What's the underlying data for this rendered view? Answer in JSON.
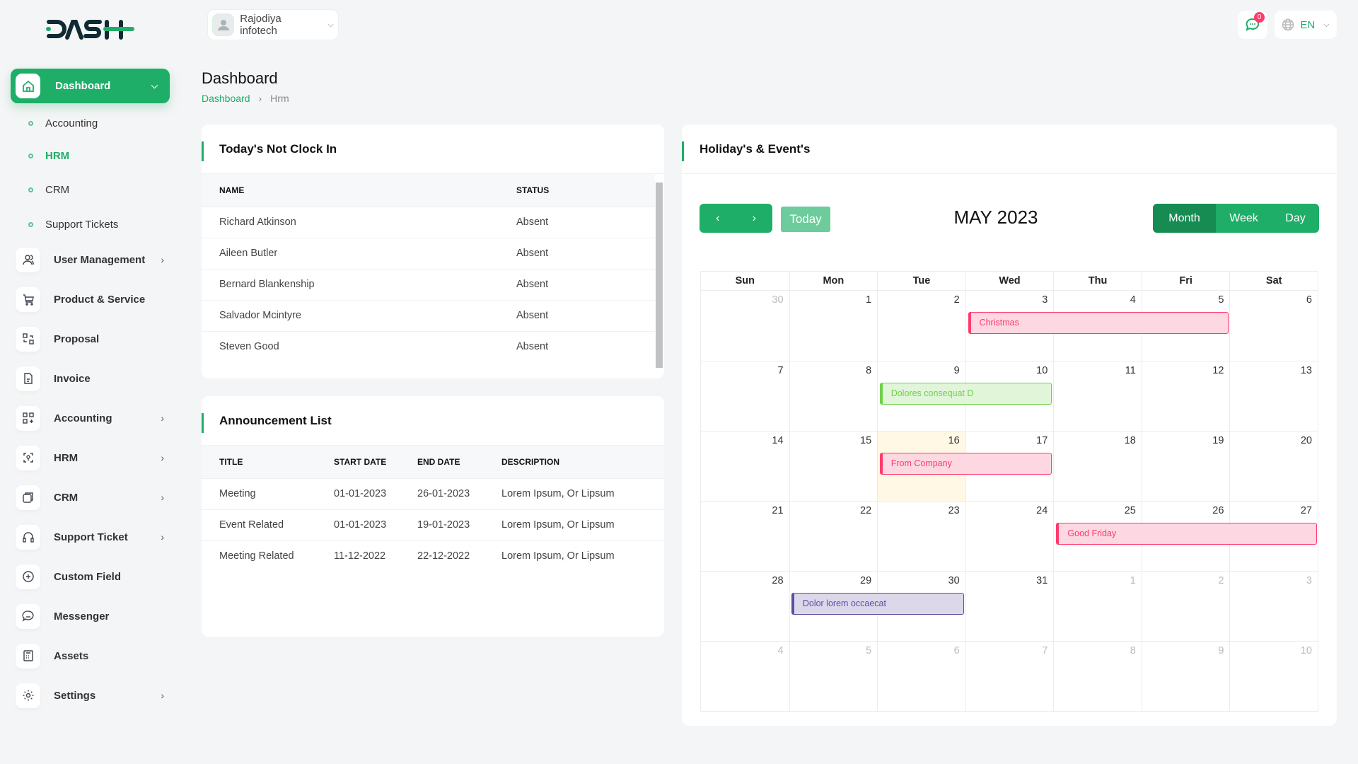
{
  "brand": {
    "logo_text": "DASH"
  },
  "header": {
    "company": "Rajodiya infotech",
    "notifications": "0",
    "language": "EN"
  },
  "sidebar": {
    "active": "Dashboard",
    "submenu": [
      {
        "label": "Accounting"
      },
      {
        "label": "HRM",
        "active": true
      },
      {
        "label": "CRM"
      },
      {
        "label": "Support Tickets"
      }
    ],
    "items": [
      {
        "label": "User Management",
        "icon": "users-icon",
        "arrow": true
      },
      {
        "label": "Product & Service",
        "icon": "cart-icon",
        "arrow": false
      },
      {
        "label": "Proposal",
        "icon": "proposal-icon",
        "arrow": false
      },
      {
        "label": "Invoice",
        "icon": "invoice-icon",
        "arrow": false
      },
      {
        "label": "Accounting",
        "icon": "grid-plus-icon",
        "arrow": true
      },
      {
        "label": "HRM",
        "icon": "hrm-icon",
        "arrow": true
      },
      {
        "label": "CRM",
        "icon": "crm-icon",
        "arrow": true
      },
      {
        "label": "Support Ticket",
        "icon": "headset-icon",
        "arrow": true
      },
      {
        "label": "Custom Field",
        "icon": "plus-circle-icon",
        "arrow": false
      },
      {
        "label": "Messenger",
        "icon": "chat-icon",
        "arrow": false
      },
      {
        "label": "Assets",
        "icon": "calculator-icon",
        "arrow": false
      },
      {
        "label": "Settings",
        "icon": "gear-icon",
        "arrow": true
      }
    ]
  },
  "page": {
    "title": "Dashboard",
    "breadcrumb": [
      "Dashboard",
      "Hrm"
    ]
  },
  "not_clock_in": {
    "title": "Today's Not Clock In",
    "columns": [
      "NAME",
      "STATUS"
    ],
    "rows": [
      [
        "Richard Atkinson",
        "Absent"
      ],
      [
        "Aileen Butler",
        "Absent"
      ],
      [
        "Bernard Blankenship",
        "Absent"
      ],
      [
        "Salvador Mcintyre",
        "Absent"
      ],
      [
        "Steven Good",
        "Absent"
      ]
    ]
  },
  "announcements": {
    "title": "Announcement List",
    "columns": [
      "TITLE",
      "START DATE",
      "END DATE",
      "DESCRIPTION"
    ],
    "rows": [
      [
        "Meeting",
        "01-01-2023",
        "26-01-2023",
        "Lorem Ipsum, Or Lipsum"
      ],
      [
        "Event Related",
        "01-01-2023",
        "19-01-2023",
        "Lorem Ipsum, Or Lipsum"
      ],
      [
        "Meeting Related",
        "11-12-2022",
        "22-12-2022",
        "Lorem Ipsum, Or Lipsum"
      ]
    ]
  },
  "calendar": {
    "title": "Holiday's & Event's",
    "today_label": "Today",
    "month_title": "MAY 2023",
    "views": [
      "Month",
      "Week",
      "Day"
    ],
    "active_view": "Month",
    "weekdays": [
      "Sun",
      "Mon",
      "Tue",
      "Wed",
      "Thu",
      "Fri",
      "Sat"
    ],
    "today": 16,
    "weeks": [
      [
        30,
        1,
        2,
        3,
        4,
        5,
        6
      ],
      [
        7,
        8,
        9,
        10,
        11,
        12,
        13
      ],
      [
        14,
        15,
        16,
        17,
        18,
        19,
        20
      ],
      [
        21,
        22,
        23,
        24,
        25,
        26,
        27
      ],
      [
        28,
        29,
        30,
        31,
        1,
        2,
        3
      ],
      [
        4,
        5,
        6,
        7,
        8,
        9,
        10
      ]
    ],
    "events": [
      {
        "title": "Christmas",
        "start": 3,
        "end": 5,
        "color": "#ff3a6e",
        "bg": "#fdd7e1"
      },
      {
        "title": "Dolores consequat D",
        "start": 9,
        "end": 10,
        "color": "#6fd04a",
        "bg": "#e1f5d9"
      },
      {
        "title": "From Company",
        "start": 16,
        "end": 17,
        "color": "#ff3a6e",
        "bg": "#fdd7e1"
      },
      {
        "title": "Good Friday",
        "start": 25,
        "end": 27,
        "color": "#ff3a6e",
        "bg": "#fdd7e1"
      },
      {
        "title": "Dolor lorem occaecat",
        "start": 29,
        "end": 30,
        "color": "#5a4ea3",
        "bg": "#dcd8ea"
      }
    ]
  },
  "colors": {
    "accent": "#1eae68"
  }
}
